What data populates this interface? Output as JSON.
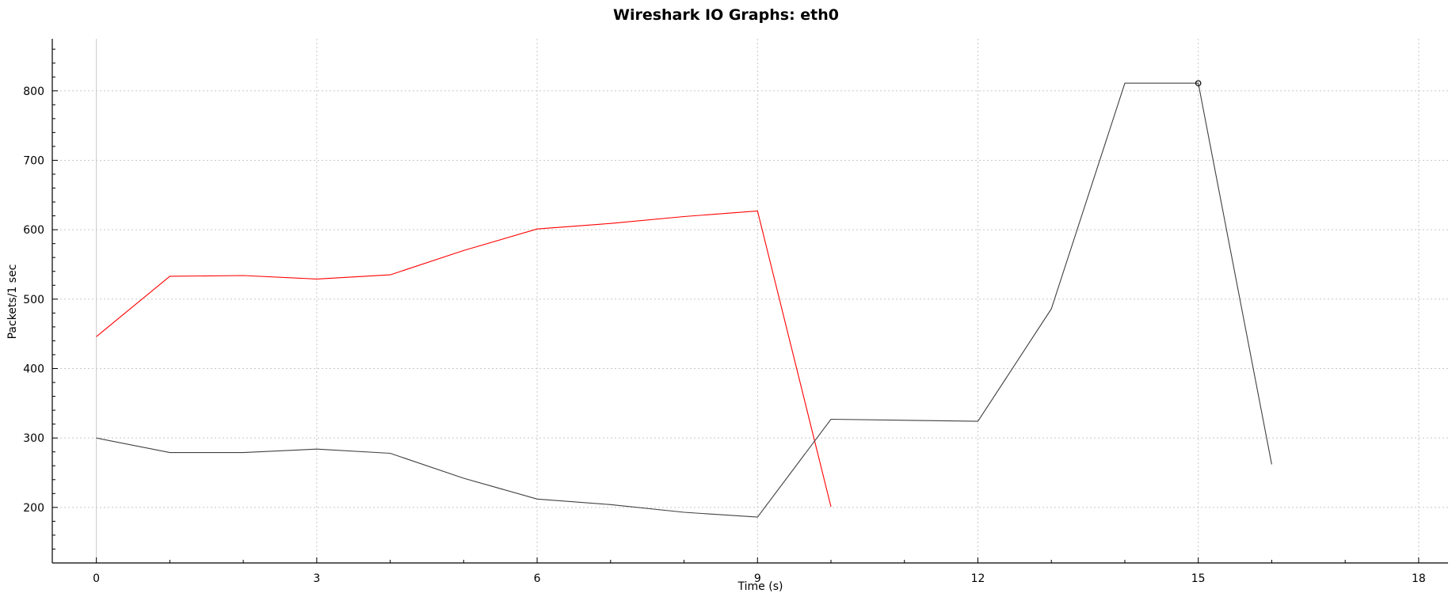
{
  "chart_data": {
    "type": "line",
    "title": "Wireshark IO Graphs: eth0",
    "xlabel": "Time (s)",
    "ylabel": "Packets/1 sec",
    "xlim": [
      -0.6,
      18.4
    ],
    "ylim": [
      120,
      875
    ],
    "x_ticks": [
      0,
      3,
      6,
      9,
      12,
      15,
      18
    ],
    "y_ticks": [
      200,
      300,
      400,
      500,
      600,
      700,
      800
    ],
    "grid": true,
    "series": [
      {
        "color": "#ff0000",
        "x": [
          0,
          1,
          2,
          3,
          4,
          5,
          6,
          7,
          8,
          9,
          10
        ],
        "y": [
          446,
          533,
          534,
          529,
          535,
          570,
          601,
          609,
          619,
          627,
          201
        ]
      },
      {
        "color": "#404040",
        "x": [
          0,
          1,
          2,
          3,
          4,
          5,
          6,
          7,
          8,
          9,
          10,
          12,
          13,
          14,
          15,
          16
        ],
        "y": [
          300,
          279,
          279,
          284,
          278,
          242,
          212,
          204,
          193,
          186,
          327,
          324,
          486,
          811,
          811,
          262
        ]
      }
    ],
    "marker": {
      "x": 15,
      "y": 811
    }
  }
}
